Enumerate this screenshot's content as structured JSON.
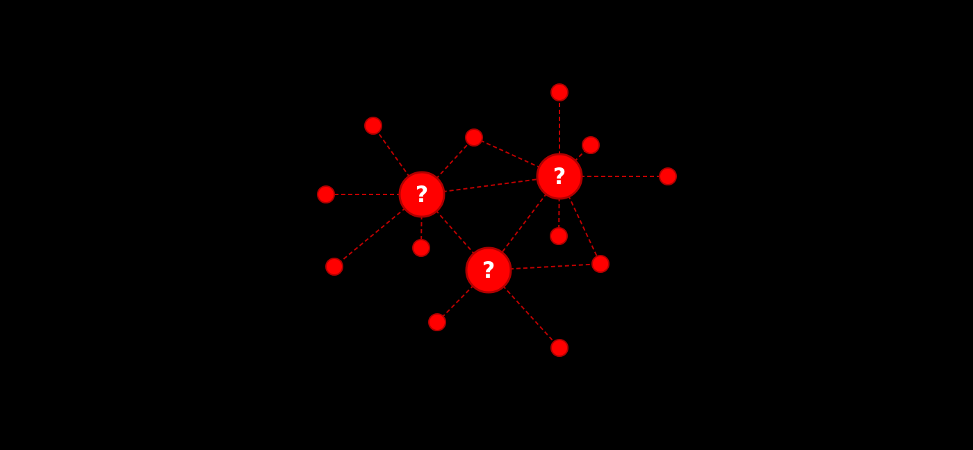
{
  "colors": {
    "background": "#000000",
    "node_fill": "#ff0000",
    "node_stroke": "#b00000",
    "edge": "#c00000",
    "label": "#ffffff"
  },
  "hubs": [
    {
      "id": "hub-a",
      "label": "?"
    },
    {
      "id": "hub-b",
      "label": "?"
    },
    {
      "id": "hub-c",
      "label": "?"
    }
  ],
  "leaves": [
    {
      "id": "leaf-1"
    },
    {
      "id": "leaf-2"
    },
    {
      "id": "leaf-3"
    },
    {
      "id": "leaf-4"
    },
    {
      "id": "leaf-5"
    },
    {
      "id": "leaf-6"
    },
    {
      "id": "leaf-7"
    },
    {
      "id": "leaf-8"
    },
    {
      "id": "leaf-9"
    },
    {
      "id": "leaf-10"
    },
    {
      "id": "leaf-11"
    },
    {
      "id": "leaf-12"
    },
    {
      "id": "leaf-13"
    }
  ],
  "edges": [
    [
      "hub-a",
      "leaf-1"
    ],
    [
      "hub-a",
      "leaf-2"
    ],
    [
      "hub-a",
      "leaf-3"
    ],
    [
      "hub-a",
      "leaf-4"
    ],
    [
      "hub-a",
      "leaf-5"
    ],
    [
      "hub-a",
      "hub-b"
    ],
    [
      "hub-a",
      "hub-c"
    ],
    [
      "leaf-5",
      "hub-b"
    ],
    [
      "hub-b",
      "leaf-6"
    ],
    [
      "hub-b",
      "leaf-7"
    ],
    [
      "hub-b",
      "leaf-8"
    ],
    [
      "hub-b",
      "leaf-9"
    ],
    [
      "hub-b",
      "leaf-10"
    ],
    [
      "hub-b",
      "hub-c"
    ],
    [
      "hub-c",
      "leaf-10"
    ],
    [
      "hub-c",
      "leaf-11"
    ],
    [
      "hub-c",
      "leaf-12"
    ]
  ]
}
